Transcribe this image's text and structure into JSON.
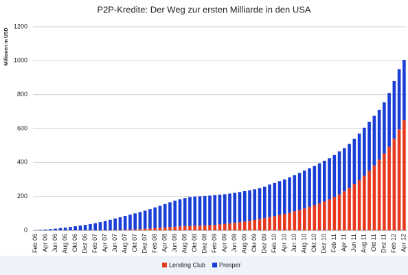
{
  "chart_data": {
    "type": "stacked_bar",
    "title": "P2P-Kredite: Der Weg zur ersten Milliarde in den USA",
    "y_label": "Millionen in USD",
    "categories": [
      "Feb 06",
      null,
      "Apr 06",
      null,
      "Jun 06",
      null,
      "Aug 06",
      null,
      "Okt 06",
      null,
      "Dez 06",
      null,
      "Feb 07",
      null,
      "Apr 07",
      null,
      "Jun 07",
      null,
      "Aug 07",
      null,
      "Okt 07",
      null,
      "Dez 07",
      null,
      "Feb 08",
      null,
      "Apr 08",
      null,
      "Jun 08",
      null,
      "Aug 08",
      null,
      "Okt 08",
      null,
      "Dez 08",
      null,
      "Feb 09",
      null,
      "Apr 09",
      null,
      "Jun 09",
      null,
      "Aug 09",
      null,
      "Okt 09",
      null,
      "Dez 09",
      null,
      "Feb 10",
      null,
      "Apr 10",
      null,
      "Jun 10",
      null,
      "Aug 10",
      null,
      "Okt 10",
      null,
      "Dez 10",
      null,
      "Feb 11",
      null,
      "Apr 11",
      null,
      "Jun 11",
      null,
      "Aug 11",
      null,
      "Okt 11",
      null,
      "Dez 11",
      null,
      "Feb 12",
      null,
      "Apr 12"
    ],
    "series": [
      {
        "name": "Lending Club",
        "color": "#e8391e",
        "values": [
          0,
          0,
          0,
          0,
          0,
          0,
          0,
          0,
          0,
          0,
          0,
          0,
          0,
          0,
          0,
          0,
          1,
          2,
          3,
          4,
          5,
          7,
          9,
          11,
          13,
          15,
          17,
          19,
          21,
          23,
          25,
          26,
          27,
          28,
          29,
          30,
          32,
          35,
          38,
          41,
          44,
          48,
          52,
          56,
          61,
          66,
          72,
          78,
          84,
          90,
          97,
          104,
          112,
          120,
          129,
          138,
          148,
          159,
          170,
          182,
          196,
          212,
          230,
          250,
          272,
          296,
          322,
          350,
          382,
          416,
          452,
          492,
          540,
          595,
          650
        ]
      },
      {
        "name": "Prosper",
        "color": "#1a3fd6",
        "values": [
          1,
          3,
          5,
          7,
          10,
          13,
          16,
          20,
          24,
          28,
          32,
          37,
          42,
          48,
          55,
          62,
          69,
          75,
          82,
          88,
          95,
          101,
          107,
          114,
          122,
          130,
          138,
          146,
          154,
          160,
          165,
          170,
          172,
          173,
          174,
          175,
          175,
          175,
          175,
          176,
          177,
          178,
          179,
          180,
          181,
          183,
          185,
          192,
          196,
          200,
          203,
          208,
          213,
          218,
          223,
          228,
          232,
          236,
          240,
          243,
          249,
          253,
          255,
          260,
          268,
          274,
          283,
          290,
          293,
          294,
          303,
          318,
          340,
          355,
          355
        ]
      }
    ],
    "ylim": [
      0,
      1200
    ],
    "yticks": [
      0,
      200,
      400,
      600,
      800,
      1000,
      1200
    ],
    "grid": true
  }
}
